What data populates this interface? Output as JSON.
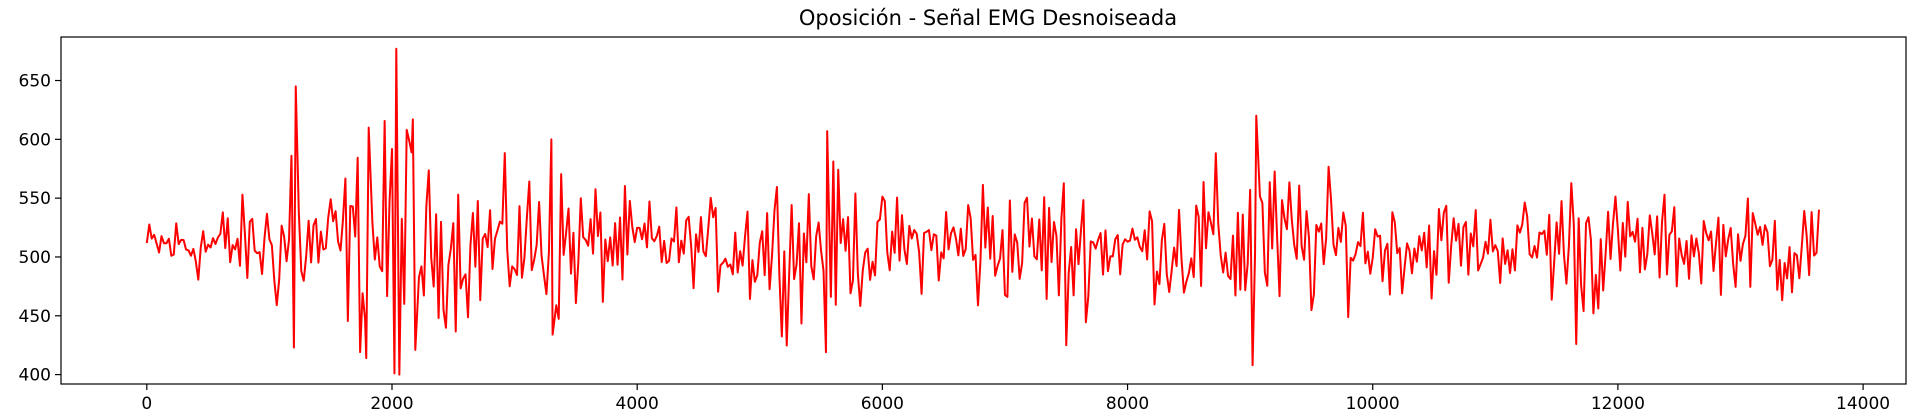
{
  "chart_data": {
    "type": "line",
    "title": "Oposición - Señal EMG Desnoiseada",
    "xlabel": "",
    "ylabel": "",
    "xlim": [
      -700,
      14350
    ],
    "ylim": [
      392,
      687
    ],
    "x_ticks": [
      0,
      2000,
      4000,
      6000,
      8000,
      10000,
      12000,
      14000
    ],
    "x_tick_labels": [
      "0",
      "2000",
      "4000",
      "6000",
      "8000",
      "10000",
      "12000",
      "14000"
    ],
    "y_ticks": [
      400,
      450,
      500,
      550,
      600,
      650
    ],
    "y_tick_labels": [
      "400",
      "450",
      "500",
      "550",
      "600",
      "650"
    ],
    "grid": false,
    "series": [
      {
        "name": "",
        "color": "#ff0000",
        "sample_step": 20,
        "n_points": 13640,
        "x_start": 0,
        "x_end": 13640,
        "baseline": 510,
        "envelope": [
          [
            0,
            15
          ],
          [
            500,
            25
          ],
          [
            900,
            30
          ],
          [
            1150,
            50
          ],
          [
            1200,
            70
          ],
          [
            1250,
            40
          ],
          [
            1450,
            35
          ],
          [
            1700,
            55
          ],
          [
            1800,
            80
          ],
          [
            1900,
            55
          ],
          [
            2030,
            110
          ],
          [
            2150,
            75
          ],
          [
            2300,
            45
          ],
          [
            2600,
            48
          ],
          [
            3000,
            42
          ],
          [
            3300,
            50
          ],
          [
            3600,
            40
          ],
          [
            4000,
            28
          ],
          [
            4500,
            22
          ],
          [
            5100,
            48
          ],
          [
            5300,
            42
          ],
          [
            5500,
            50
          ],
          [
            6000,
            30
          ],
          [
            6500,
            25
          ],
          [
            6700,
            55
          ],
          [
            7000,
            35
          ],
          [
            7500,
            45
          ],
          [
            8000,
            22
          ],
          [
            8500,
            42
          ],
          [
            8900,
            55
          ],
          [
            9050,
            70
          ],
          [
            9200,
            50
          ],
          [
            9500,
            45
          ],
          [
            10000,
            28
          ],
          [
            10500,
            32
          ],
          [
            11000,
            22
          ],
          [
            11500,
            38
          ],
          [
            11700,
            55
          ],
          [
            12000,
            30
          ],
          [
            12500,
            28
          ],
          [
            13000,
            25
          ],
          [
            13400,
            40
          ],
          [
            13640,
            30
          ]
        ],
        "peaks": [
          [
            1180,
            586
          ],
          [
            1200,
            423
          ],
          [
            1215,
            645
          ],
          [
            1790,
            414
          ],
          [
            1810,
            610
          ],
          [
            2020,
            401
          ],
          [
            2035,
            677
          ],
          [
            2170,
            617
          ],
          [
            2190,
            421
          ],
          [
            3300,
            600
          ],
          [
            3310,
            434
          ],
          [
            5550,
            607
          ],
          [
            5540,
            419
          ],
          [
            7500,
            425
          ],
          [
            9050,
            620
          ],
          [
            9020,
            408
          ],
          [
            11650,
            586
          ],
          [
            11660,
            426
          ]
        ]
      }
    ]
  }
}
